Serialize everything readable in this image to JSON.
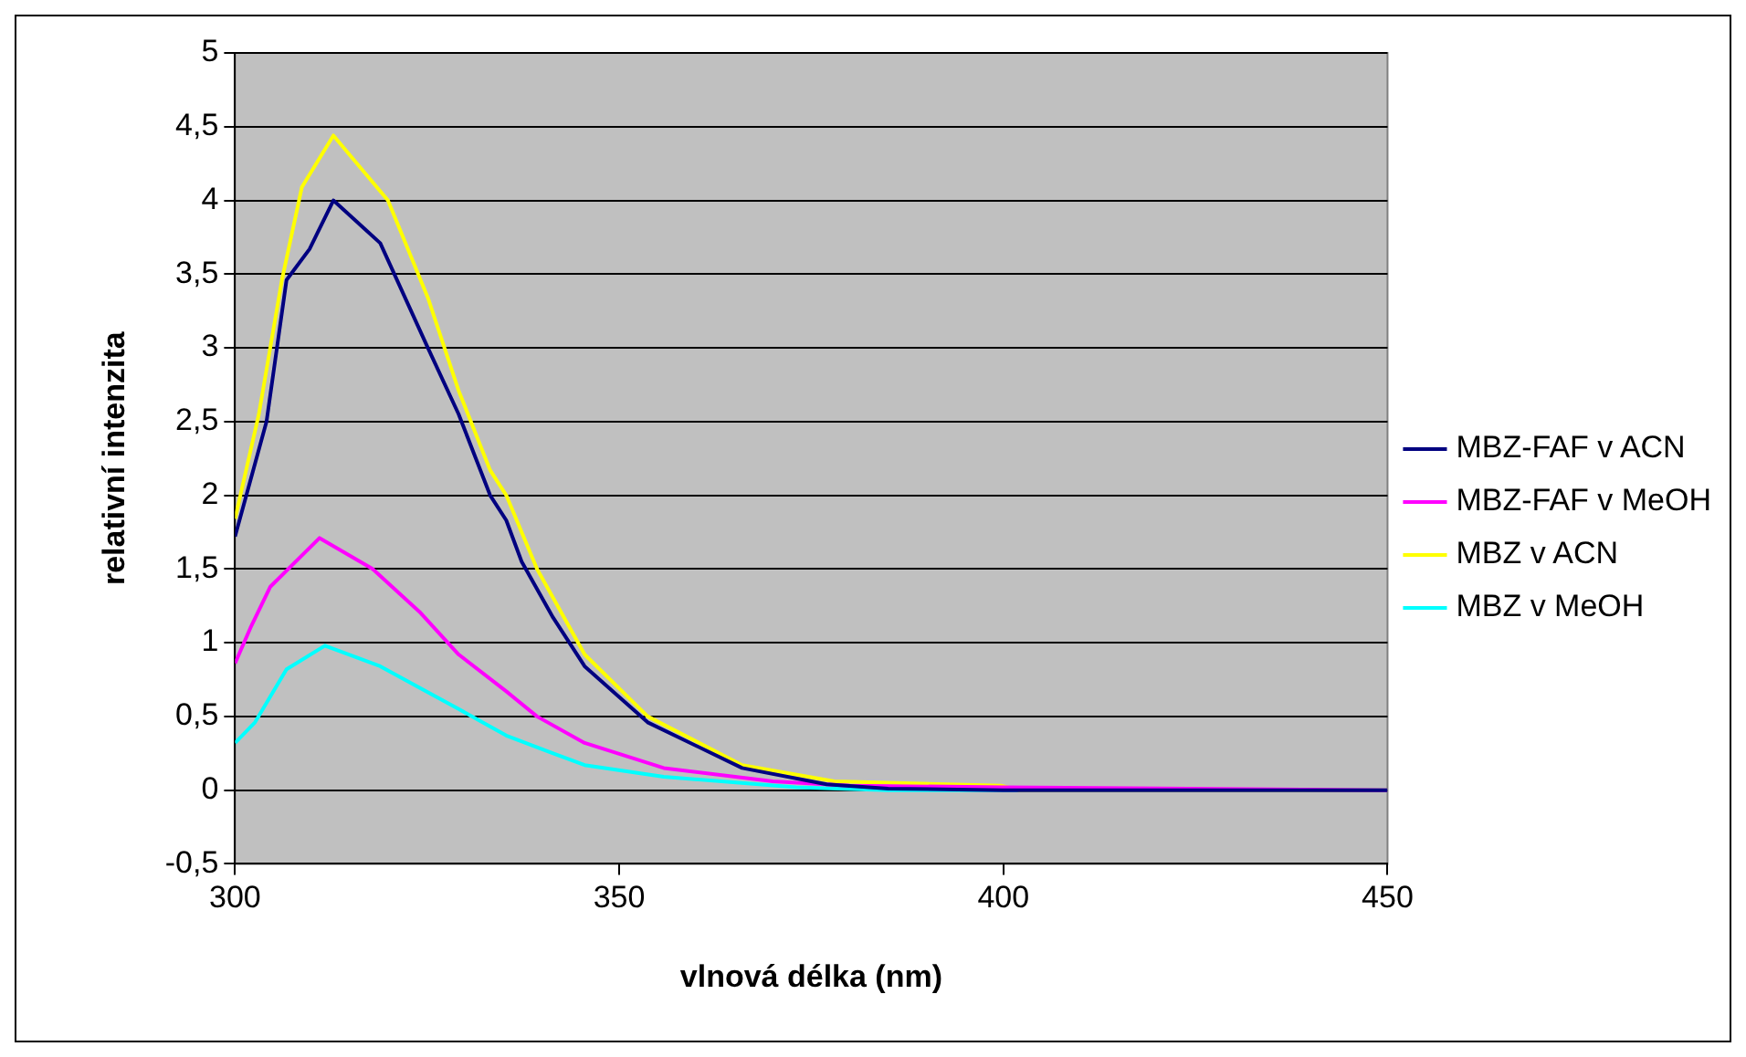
{
  "chart_data": {
    "type": "line",
    "xlabel": "vlnová délka (nm)",
    "ylabel": "relativní intenzita",
    "xlim": [
      300,
      450
    ],
    "xticks": [
      300,
      350,
      400,
      450
    ],
    "ylim": [
      -0.5,
      5
    ],
    "yticks": [
      {
        "value": -0.5,
        "label": "-0,5"
      },
      0,
      {
        "value": 0.5,
        "label": "0,5"
      },
      1,
      {
        "value": 1.5,
        "label": "1,5"
      },
      2,
      {
        "value": 2.5,
        "label": "2,5"
      },
      3,
      {
        "value": 3.5,
        "label": "3,5"
      },
      4,
      {
        "value": 4.5,
        "label": "4,5"
      },
      5
    ],
    "grid": "y",
    "legend": "right",
    "marker": "none",
    "line_style": "solid",
    "series": [
      {
        "name": "MBZ-FAF v ACN",
        "color": "#000080",
        "x": [
          300,
          304.1,
          306.7,
          309.7,
          312.8,
          318.9,
          325.1,
          329.1,
          333.2,
          335.3,
          337.3,
          341.4,
          345.5,
          353.7,
          366,
          377,
          385,
          400,
          450
        ],
        "values": [
          1.72,
          2.5,
          3.46,
          3.67,
          4.0,
          3.71,
          3.0,
          2.55,
          2.0,
          1.83,
          1.55,
          1.17,
          0.84,
          0.46,
          0.15,
          0.04,
          0.01,
          0,
          0
        ]
      },
      {
        "name": "MBZ-FAF v MeOH",
        "color": "#ff00ff",
        "x": [
          300,
          302,
          304.6,
          311,
          317.9,
          324,
          329.1,
          335.3,
          339.3,
          345.5,
          355.8,
          370,
          380,
          400,
          450
        ],
        "values": [
          0.86,
          1.1,
          1.38,
          1.71,
          1.5,
          1.21,
          0.92,
          0.67,
          0.5,
          0.32,
          0.15,
          0.06,
          0.03,
          0.02,
          0
        ]
      },
      {
        "name": "MBZ v ACN",
        "color": "#ffff00",
        "x": [
          300,
          303.1,
          306.1,
          308.7,
          312.8,
          319.9,
          325.1,
          329.1,
          333.2,
          335.3,
          339.3,
          345.5,
          353.7,
          366,
          378,
          399.7,
          402,
          450
        ],
        "values": [
          1.84,
          2.55,
          3.46,
          4.09,
          4.44,
          4.0,
          3.34,
          2.71,
          2.17,
          2.0,
          1.5,
          0.92,
          0.5,
          0.17,
          0.06,
          0.03,
          0,
          0
        ]
      },
      {
        "name": "MBZ v MeOH",
        "color": "#00ffff",
        "x": [
          300,
          302.6,
          306.7,
          311.7,
          318.9,
          329.1,
          335.3,
          341.4,
          345.5,
          355.8,
          373,
          385,
          450
        ],
        "values": [
          0.32,
          0.46,
          0.82,
          0.98,
          0.84,
          0.55,
          0.37,
          0.25,
          0.17,
          0.09,
          0.02,
          0,
          0
        ]
      }
    ]
  }
}
